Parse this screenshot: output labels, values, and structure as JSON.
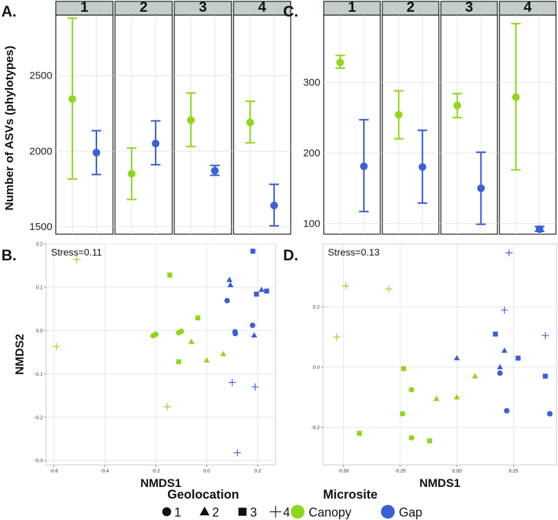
{
  "colors": {
    "canopy": "#8fd61c",
    "gap": "#3a5fd6",
    "strip": "#c4cdcd",
    "grid": "#e4e4e4"
  },
  "ylabel": "Number of ASVs (phylotypes)",
  "chart_data": [
    {
      "panel": "A.",
      "type": "errorbar",
      "facets": [
        "1",
        "2",
        "3",
        "4"
      ],
      "yticks": [
        "1500",
        "2000",
        "2500"
      ],
      "ylim": [
        1450,
        2900
      ],
      "series": [
        {
          "name": "Canopy",
          "mean": [
            2345,
            1850,
            2205,
            2190
          ],
          "low": [
            1815,
            1680,
            2030,
            2055
          ],
          "high": [
            2880,
            2020,
            2385,
            2330
          ]
        },
        {
          "name": "Gap",
          "mean": [
            1990,
            2050,
            1870,
            1640
          ],
          "low": [
            1845,
            1910,
            1840,
            1505
          ],
          "high": [
            2135,
            2200,
            1905,
            1780
          ]
        }
      ]
    },
    {
      "panel": "C.",
      "type": "errorbar",
      "facets": [
        "1",
        "2",
        "3",
        "4"
      ],
      "yticks": [
        "100",
        "200",
        "300"
      ],
      "ylim": [
        85,
        395
      ],
      "series": [
        {
          "name": "Canopy",
          "mean": [
            328,
            254,
            267,
            279
          ],
          "low": [
            320,
            220,
            250,
            176
          ],
          "high": [
            338,
            288,
            284,
            383
          ]
        },
        {
          "name": "Gap",
          "mean": [
            181,
            180,
            150,
            92
          ],
          "low": [
            117,
            129,
            99,
            89
          ],
          "high": [
            247,
            232,
            201,
            96
          ]
        }
      ]
    },
    {
      "panel": "B.",
      "type": "scatter",
      "stress": "Stress=0.11",
      "xlabel": "NMDS1",
      "ylabel": "NMDS2",
      "xlim": [
        -0.63,
        0.27
      ],
      "ylim": [
        -0.31,
        0.2
      ],
      "xticks": [
        "-0.6",
        "-0.4",
        "-0.2",
        "0.0",
        "0.2"
      ],
      "yticks": [
        "-0.3",
        "-0.2",
        "-0.1",
        "0.0",
        "0.1",
        "0.2"
      ],
      "points": [
        {
          "g": "4",
          "m": "Canopy",
          "x": -0.51,
          "y": 0.164
        },
        {
          "g": "4",
          "m": "Canopy",
          "x": -0.59,
          "y": -0.037
        },
        {
          "g": "4",
          "m": "Canopy",
          "x": -0.155,
          "y": -0.176
        },
        {
          "g": "3",
          "m": "Canopy",
          "x": -0.145,
          "y": 0.128
        },
        {
          "g": "3",
          "m": "Canopy",
          "x": -0.035,
          "y": 0.029
        },
        {
          "g": "3",
          "m": "Canopy",
          "x": -0.11,
          "y": -0.072
        },
        {
          "g": "1",
          "m": "Canopy",
          "x": -0.21,
          "y": -0.012
        },
        {
          "g": "1",
          "m": "Canopy",
          "x": -0.2,
          "y": -0.009
        },
        {
          "g": "1",
          "m": "Canopy",
          "x": -0.11,
          "y": -0.005
        },
        {
          "g": "1",
          "m": "Canopy",
          "x": -0.1,
          "y": -0.002
        },
        {
          "g": "2",
          "m": "Canopy",
          "x": -0.06,
          "y": -0.026
        },
        {
          "g": "2",
          "m": "Canopy",
          "x": 0.0,
          "y": -0.069
        },
        {
          "g": "2",
          "m": "Canopy",
          "x": 0.065,
          "y": -0.054
        },
        {
          "g": "3",
          "m": "Gap",
          "x": 0.181,
          "y": 0.183
        },
        {
          "g": "3",
          "m": "Gap",
          "x": 0.195,
          "y": 0.084
        },
        {
          "g": "3",
          "m": "Gap",
          "x": 0.235,
          "y": 0.091
        },
        {
          "g": "2",
          "m": "Gap",
          "x": 0.089,
          "y": 0.117
        },
        {
          "g": "2",
          "m": "Gap",
          "x": 0.093,
          "y": 0.105
        },
        {
          "g": "2",
          "m": "Gap",
          "x": 0.215,
          "y": 0.094
        },
        {
          "g": "2",
          "m": "Gap",
          "x": 0.186,
          "y": -0.011
        },
        {
          "g": "1",
          "m": "Gap",
          "x": 0.08,
          "y": 0.069
        },
        {
          "g": "1",
          "m": "Gap",
          "x": 0.18,
          "y": 0.012
        },
        {
          "g": "1",
          "m": "Gap",
          "x": 0.111,
          "y": -0.003
        },
        {
          "g": "1",
          "m": "Gap",
          "x": 0.112,
          "y": -0.007
        },
        {
          "g": "4",
          "m": "Gap",
          "x": 0.1,
          "y": -0.12
        },
        {
          "g": "4",
          "m": "Gap",
          "x": 0.19,
          "y": -0.13
        },
        {
          "g": "4",
          "m": "Gap",
          "x": 0.12,
          "y": -0.282
        }
      ]
    },
    {
      "panel": "D.",
      "type": "scatter",
      "stress": "Stress=0.13",
      "xlabel": "NMDS1",
      "ylabel": "",
      "xlim": [
        -0.59,
        0.44
      ],
      "ylim": [
        -0.325,
        0.41
      ],
      "xticks": [
        "-0.50",
        "-0.25",
        "0.00",
        "0.25"
      ],
      "yticks": [
        "-0.2",
        "0.0",
        "0.2"
      ],
      "points": [
        {
          "g": "4",
          "m": "Canopy",
          "x": -0.49,
          "y": 0.27
        },
        {
          "g": "4",
          "m": "Canopy",
          "x": -0.3,
          "y": 0.26
        },
        {
          "g": "4",
          "m": "Canopy",
          "x": -0.53,
          "y": 0.1
        },
        {
          "g": "3",
          "m": "Canopy",
          "x": -0.235,
          "y": -0.005
        },
        {
          "g": "3",
          "m": "Canopy",
          "x": -0.43,
          "y": -0.22
        },
        {
          "g": "3",
          "m": "Canopy",
          "x": -0.12,
          "y": -0.245
        },
        {
          "g": "1",
          "m": "Canopy",
          "x": -0.2,
          "y": -0.075
        },
        {
          "g": "1",
          "m": "Canopy",
          "x": -0.24,
          "y": -0.155
        },
        {
          "g": "1",
          "m": "Canopy",
          "x": -0.2,
          "y": -0.235
        },
        {
          "g": "2",
          "m": "Canopy",
          "x": -0.09,
          "y": -0.105
        },
        {
          "g": "2",
          "m": "Canopy",
          "x": 0.0,
          "y": -0.1
        },
        {
          "g": "2",
          "m": "Canopy",
          "x": 0.08,
          "y": -0.03
        },
        {
          "g": "4",
          "m": "Gap",
          "x": 0.23,
          "y": 0.38
        },
        {
          "g": "4",
          "m": "Gap",
          "x": 0.21,
          "y": 0.19
        },
        {
          "g": "4",
          "m": "Gap",
          "x": 0.39,
          "y": 0.105
        },
        {
          "g": "3",
          "m": "Gap",
          "x": 0.17,
          "y": 0.11
        },
        {
          "g": "3",
          "m": "Gap",
          "x": 0.27,
          "y": 0.03
        },
        {
          "g": "3",
          "m": "Gap",
          "x": 0.39,
          "y": -0.03
        },
        {
          "g": "2",
          "m": "Gap",
          "x": 0.0,
          "y": 0.03
        },
        {
          "g": "2",
          "m": "Gap",
          "x": 0.21,
          "y": 0.055
        },
        {
          "g": "2",
          "m": "Gap",
          "x": 0.19,
          "y": 0.0
        },
        {
          "g": "1",
          "m": "Gap",
          "x": 0.19,
          "y": -0.02
        },
        {
          "g": "1",
          "m": "Gap",
          "x": 0.22,
          "y": -0.145
        },
        {
          "g": "1",
          "m": "Gap",
          "x": 0.41,
          "y": -0.155
        }
      ]
    }
  ],
  "legend": {
    "geolocation_title": "Geolocation",
    "geo_labels": [
      "1",
      "2",
      "3",
      "4"
    ],
    "microsite_title": "Microsite",
    "microsite_labels": [
      "Canopy",
      "Gap"
    ]
  }
}
